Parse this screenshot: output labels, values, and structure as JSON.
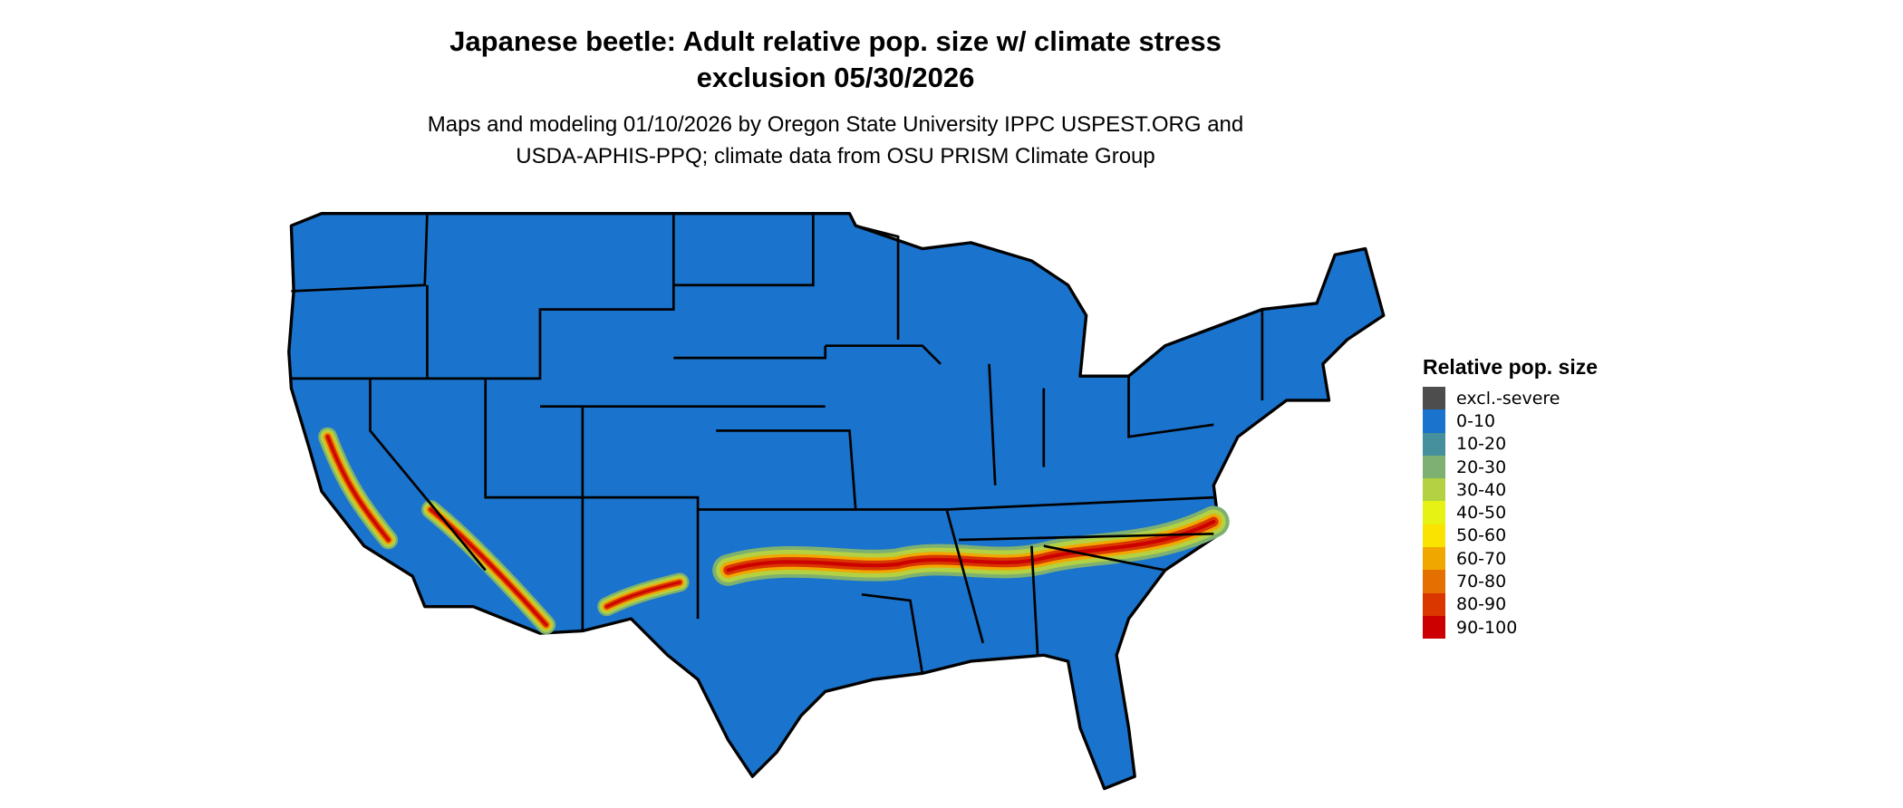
{
  "title_line1": "Japanese beetle: Adult relative pop. size w/ climate stress",
  "title_line2": "exclusion 05/30/2026",
  "subtitle_line1": "Maps and modeling 01/10/2026 by Oregon State University IPPC USPEST.ORG and",
  "subtitle_line2": "USDA-APHIS-PPQ; climate data from OSU PRISM Climate Group",
  "chart_data": {
    "type": "heatmap",
    "region": "Contiguous United States",
    "legend": {
      "title": "Relative pop. size",
      "placement": "right",
      "items": [
        {
          "label": "excl.-severe",
          "color": "#4d4d4d"
        },
        {
          "label": "0-10",
          "color": "#1a73cc"
        },
        {
          "label": "10-20",
          "color": "#468f9c"
        },
        {
          "label": "20-30",
          "color": "#7db071"
        },
        {
          "label": "30-40",
          "color": "#b3d143"
        },
        {
          "label": "40-50",
          "color": "#e6f214"
        },
        {
          "label": "50-60",
          "color": "#fae300"
        },
        {
          "label": "60-70",
          "color": "#f0a800"
        },
        {
          "label": "70-80",
          "color": "#e37000"
        },
        {
          "label": "80-90",
          "color": "#d93600"
        },
        {
          "label": "90-100",
          "color": "#cc0000"
        }
      ]
    }
  }
}
